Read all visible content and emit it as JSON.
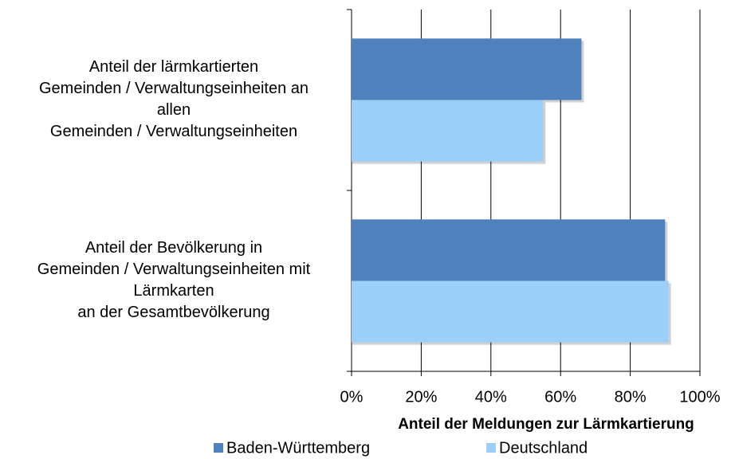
{
  "chart_data": {
    "type": "bar",
    "orientation": "horizontal",
    "categories": [
      "Anteil der lärmkartierten\nGemeinden / Verwaltungseinheiten an\nallen\nGemeinden / Verwaltungseinheiten",
      "Anteil der Bevölkerung in\nGemeinden / Verwaltungseinheiten mit\nLärmkarten\nan der Gesamtbevölkerung"
    ],
    "series": [
      {
        "name": "Baden-Württemberg",
        "color": "#4f81bd",
        "values": [
          66,
          90
        ]
      },
      {
        "name": "Deutschland",
        "color": "#9dcffb",
        "values": [
          55,
          91
        ]
      }
    ],
    "xlabel": "Anteil der Meldungen zur Lärmkartierung",
    "xlim": [
      0,
      100
    ],
    "xticks": [
      {
        "value": 0,
        "label": "0%"
      },
      {
        "value": 20,
        "label": "20%"
      },
      {
        "value": 40,
        "label": "40%"
      },
      {
        "value": 60,
        "label": "60%"
      },
      {
        "value": 80,
        "label": "80%"
      },
      {
        "value": 100,
        "label": "100%"
      }
    ],
    "grid": true,
    "legend": "bottom"
  }
}
